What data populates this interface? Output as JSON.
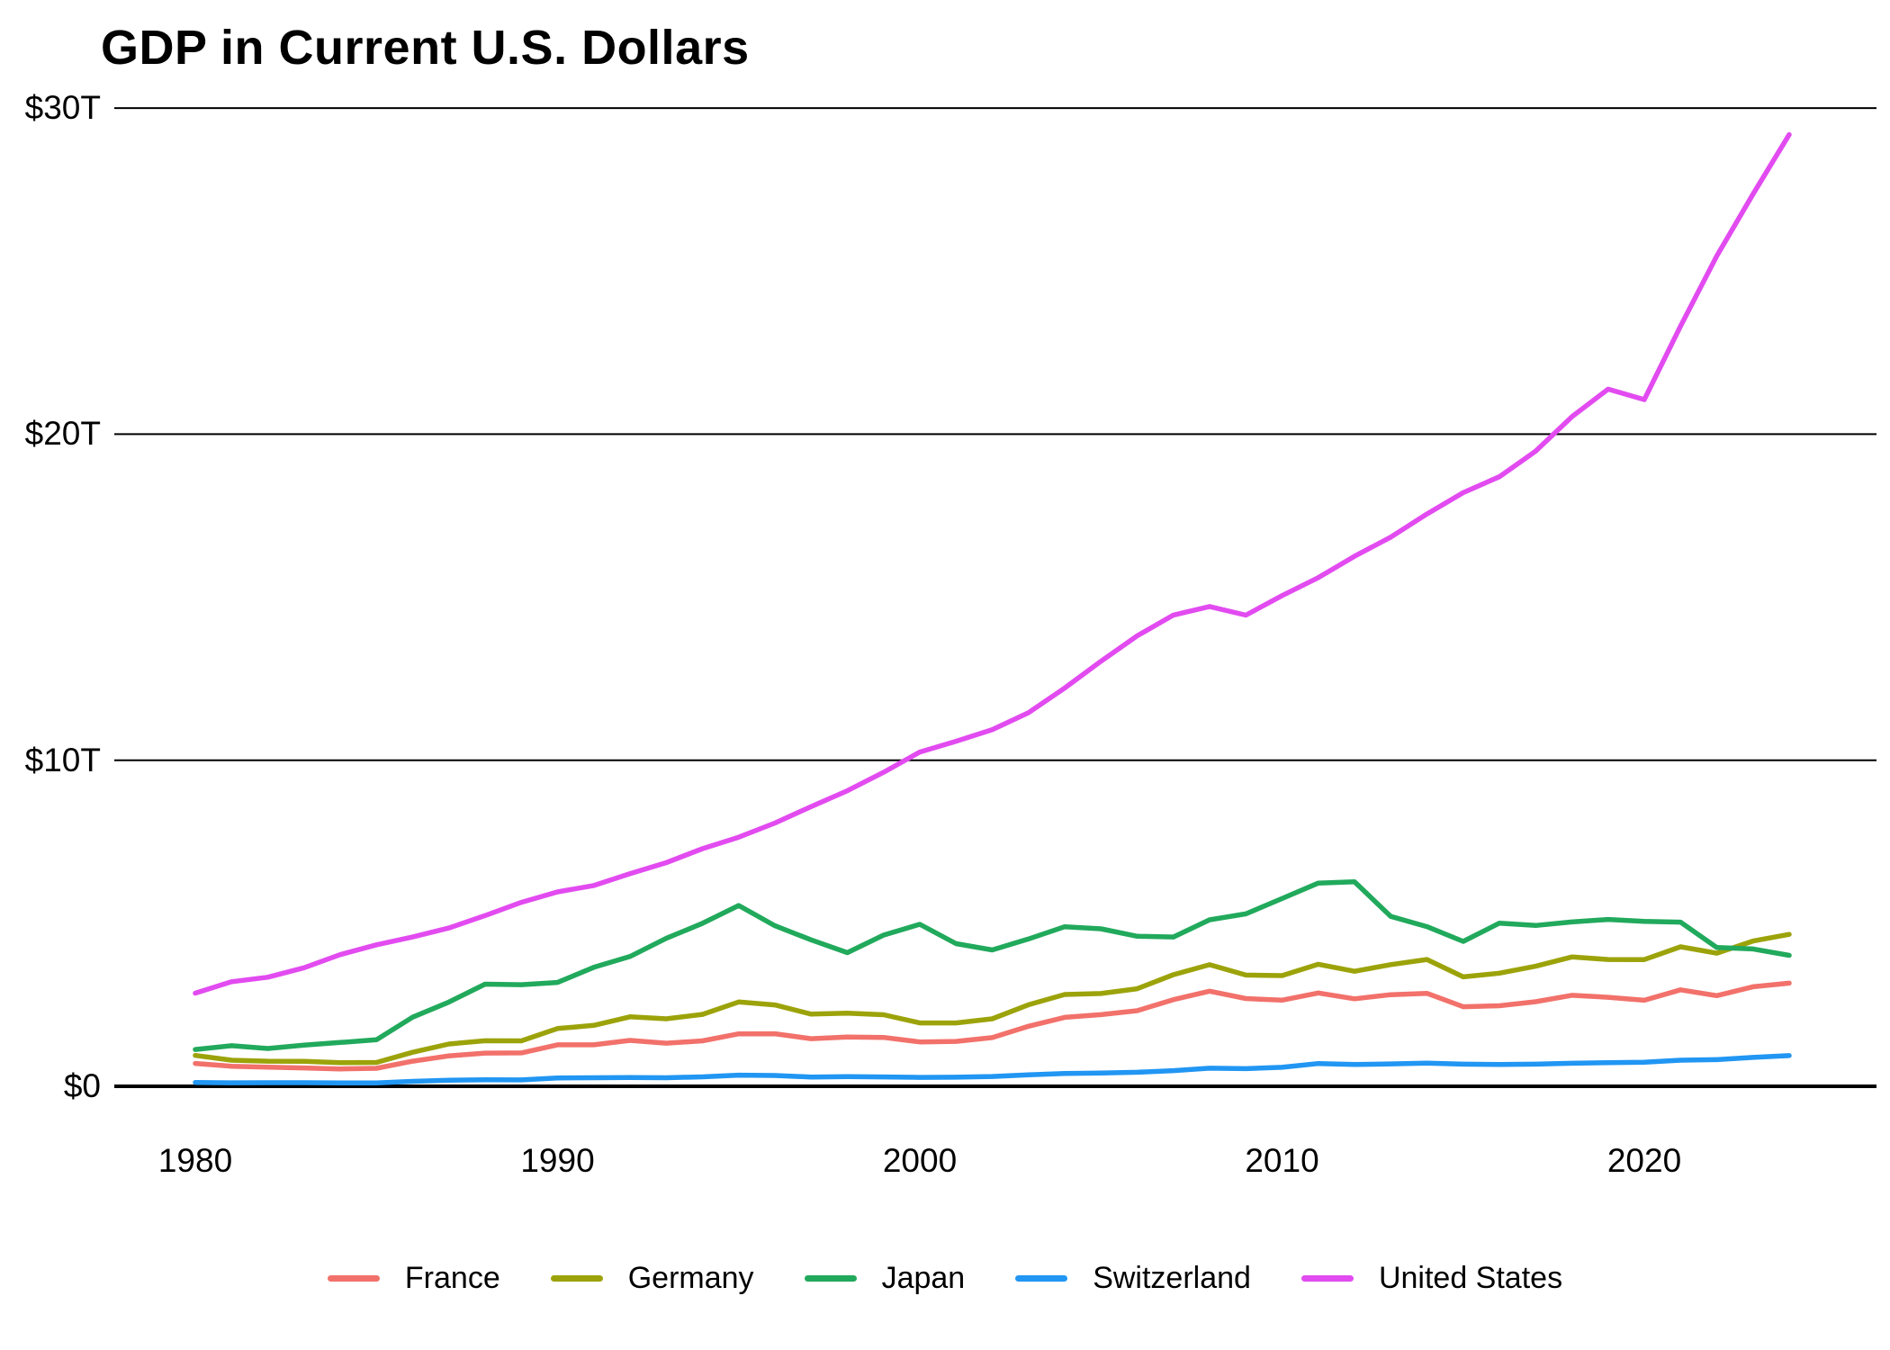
{
  "chart_data": {
    "type": "line",
    "title": "GDP in Current U.S. Dollars",
    "y_unit": "trillions of current U.S. dollars",
    "ylim": [
      0,
      30
    ],
    "grid": "horizontal",
    "legend_position": "bottom",
    "x": [
      1980,
      1981,
      1982,
      1983,
      1984,
      1985,
      1986,
      1987,
      1988,
      1989,
      1990,
      1991,
      1992,
      1993,
      1994,
      1995,
      1996,
      1997,
      1998,
      1999,
      2000,
      2001,
      2002,
      2003,
      2004,
      2005,
      2006,
      2007,
      2008,
      2009,
      2010,
      2011,
      2012,
      2013,
      2014,
      2015,
      2016,
      2017,
      2018,
      2019,
      2020,
      2021,
      2022,
      2023,
      2024
    ],
    "x_tick_labels": [
      "1980",
      "1990",
      "2000",
      "2010",
      "2020"
    ],
    "x_tick_values": [
      1980,
      1990,
      2000,
      2010,
      2020
    ],
    "y_ticks": [
      {
        "value": 0,
        "label": "$0"
      },
      {
        "value": 10,
        "label": "$10T"
      },
      {
        "value": 20,
        "label": "$20T"
      },
      {
        "value": 30,
        "label": "$30T"
      }
    ],
    "series": [
      {
        "name": "France",
        "color": "#F2716B",
        "values": [
          0.701,
          0.616,
          0.584,
          0.563,
          0.532,
          0.553,
          0.771,
          0.934,
          1.018,
          1.025,
          1.272,
          1.273,
          1.408,
          1.323,
          1.394,
          1.61,
          1.612,
          1.46,
          1.51,
          1.5,
          1.362,
          1.376,
          1.494,
          1.84,
          2.115,
          2.196,
          2.318,
          2.657,
          2.918,
          2.69,
          2.642,
          2.861,
          2.683,
          2.811,
          2.852,
          2.439,
          2.471,
          2.595,
          2.79,
          2.729,
          2.639,
          2.959,
          2.78,
          3.052,
          3.162
        ]
      },
      {
        "name": "Germany",
        "color": "#9CA30A",
        "values": [
          0.947,
          0.8,
          0.771,
          0.768,
          0.724,
          0.732,
          1.044,
          1.296,
          1.396,
          1.393,
          1.772,
          1.869,
          2.131,
          2.071,
          2.205,
          2.585,
          2.494,
          2.213,
          2.24,
          2.194,
          1.943,
          1.944,
          2.069,
          2.501,
          2.814,
          2.846,
          2.992,
          3.422,
          3.73,
          3.411,
          3.396,
          3.744,
          3.527,
          3.733,
          3.889,
          3.357,
          3.469,
          3.682,
          3.966,
          3.888,
          3.887,
          4.278,
          4.082,
          4.456,
          4.66
        ]
      },
      {
        "name": "Japan",
        "color": "#21A95C",
        "values": [
          1.129,
          1.245,
          1.158,
          1.263,
          1.345,
          1.427,
          2.121,
          2.584,
          3.134,
          3.117,
          3.186,
          3.648,
          3.98,
          4.539,
          4.998,
          5.546,
          4.923,
          4.492,
          4.098,
          4.636,
          4.968,
          4.374,
          4.182,
          4.519,
          4.893,
          4.831,
          4.601,
          4.579,
          5.106,
          5.289,
          5.759,
          6.233,
          6.272,
          5.212,
          4.897,
          4.444,
          5.004,
          4.931,
          5.041,
          5.118,
          5.056,
          5.034,
          4.256,
          4.213,
          4.017
        ]
      },
      {
        "name": "Switzerland",
        "color": "#2196F3",
        "values": [
          0.119,
          0.109,
          0.111,
          0.11,
          0.105,
          0.106,
          0.151,
          0.188,
          0.202,
          0.197,
          0.258,
          0.261,
          0.271,
          0.263,
          0.291,
          0.342,
          0.33,
          0.285,
          0.295,
          0.288,
          0.272,
          0.278,
          0.301,
          0.352,
          0.394,
          0.408,
          0.43,
          0.479,
          0.554,
          0.541,
          0.583,
          0.699,
          0.668,
          0.688,
          0.709,
          0.679,
          0.67,
          0.68,
          0.706,
          0.722,
          0.74,
          0.8,
          0.818,
          0.885,
          0.942
        ]
      },
      {
        "name": "United States",
        "color": "#E24BF0",
        "values": [
          2.857,
          3.207,
          3.344,
          3.634,
          4.038,
          4.339,
          4.58,
          4.855,
          5.236,
          5.642,
          5.963,
          6.158,
          6.52,
          6.859,
          7.287,
          7.64,
          8.073,
          8.578,
          9.063,
          9.631,
          10.251,
          10.582,
          10.936,
          11.458,
          12.214,
          13.037,
          13.815,
          14.452,
          14.713,
          14.449,
          15.049,
          15.6,
          16.254,
          16.843,
          17.551,
          18.206,
          18.695,
          19.477,
          20.533,
          21.381,
          21.06,
          23.315,
          25.462,
          27.361,
          29.185
        ]
      }
    ]
  }
}
